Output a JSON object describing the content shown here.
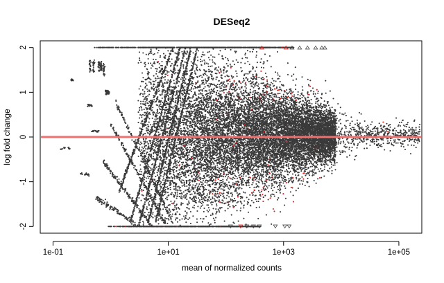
{
  "chart_data": {
    "type": "scatter",
    "title": "DESeq2",
    "xlabel": "mean of normalized counts",
    "ylabel": "log fold change",
    "x_scale": "log10",
    "xlim": [
      0.06,
      250000
    ],
    "ylim": [
      -2.15,
      2.15
    ],
    "x_ticks": [
      {
        "value": 0.1,
        "label": "1e-01"
      },
      {
        "value": 10,
        "label": "1e+01"
      },
      {
        "value": 1000,
        "label": "1e+03"
      },
      {
        "value": 100000,
        "label": "1e+05"
      }
    ],
    "y_ticks": [
      {
        "value": -2,
        "label": "-2"
      },
      {
        "value": -1,
        "label": "-1"
      },
      {
        "value": 0,
        "label": "0"
      },
      {
        "value": 1,
        "label": "1"
      },
      {
        "value": 2,
        "label": "2"
      }
    ],
    "reference_line": {
      "y": 0,
      "color": "#f07070"
    },
    "colors": {
      "points": "#3a3a3a",
      "significant": "#e8201f",
      "axis": "#000000"
    },
    "grid": false,
    "legend": "none",
    "approx_point_count": 14000,
    "clipped_markers": {
      "top": [
        {
          "x": 1400,
          "y": 2,
          "sig": false
        },
        {
          "x": 1900,
          "y": 2,
          "sig": false
        },
        {
          "x": 2600,
          "y": 2,
          "sig": false
        },
        {
          "x": 3600,
          "y": 2,
          "sig": false
        },
        {
          "x": 4600,
          "y": 2,
          "sig": false
        },
        {
          "x": 5200,
          "y": 2,
          "sig": false
        },
        {
          "x": 420,
          "y": 2,
          "sig": true
        },
        {
          "x": 1100,
          "y": 2,
          "sig": true
        }
      ],
      "bottom": [
        {
          "x": 120,
          "y": -2,
          "sig": false
        },
        {
          "x": 230,
          "y": -2,
          "sig": false
        },
        {
          "x": 300,
          "y": -2,
          "sig": false
        },
        {
          "x": 380,
          "y": -2,
          "sig": false
        },
        {
          "x": 720,
          "y": -2,
          "sig": false
        },
        {
          "x": 1050,
          "y": -2,
          "sig": false
        },
        {
          "x": 1250,
          "y": -2,
          "sig": false
        },
        {
          "x": 180,
          "y": -2,
          "sig": true
        }
      ]
    },
    "discrete_clusters": [
      {
        "x": 0.14,
        "y": -0.27
      },
      {
        "x": 0.16,
        "y": -0.25
      },
      {
        "x": 0.19,
        "y": -0.25
      },
      {
        "x": 0.21,
        "y": 1.28
      },
      {
        "x": 0.22,
        "y": 1.27
      },
      {
        "x": 0.31,
        "y": -0.82
      },
      {
        "x": 0.36,
        "y": -0.83
      },
      {
        "x": 0.4,
        "y": -0.84
      },
      {
        "x": 0.41,
        "y": 0.71
      },
      {
        "x": 0.44,
        "y": 0.71
      },
      {
        "x": 0.47,
        "y": 0.7
      },
      {
        "x": 0.5,
        "y": 0.13
      },
      {
        "x": 0.55,
        "y": 0.13
      },
      {
        "x": 0.6,
        "y": 0.12
      }
    ]
  }
}
